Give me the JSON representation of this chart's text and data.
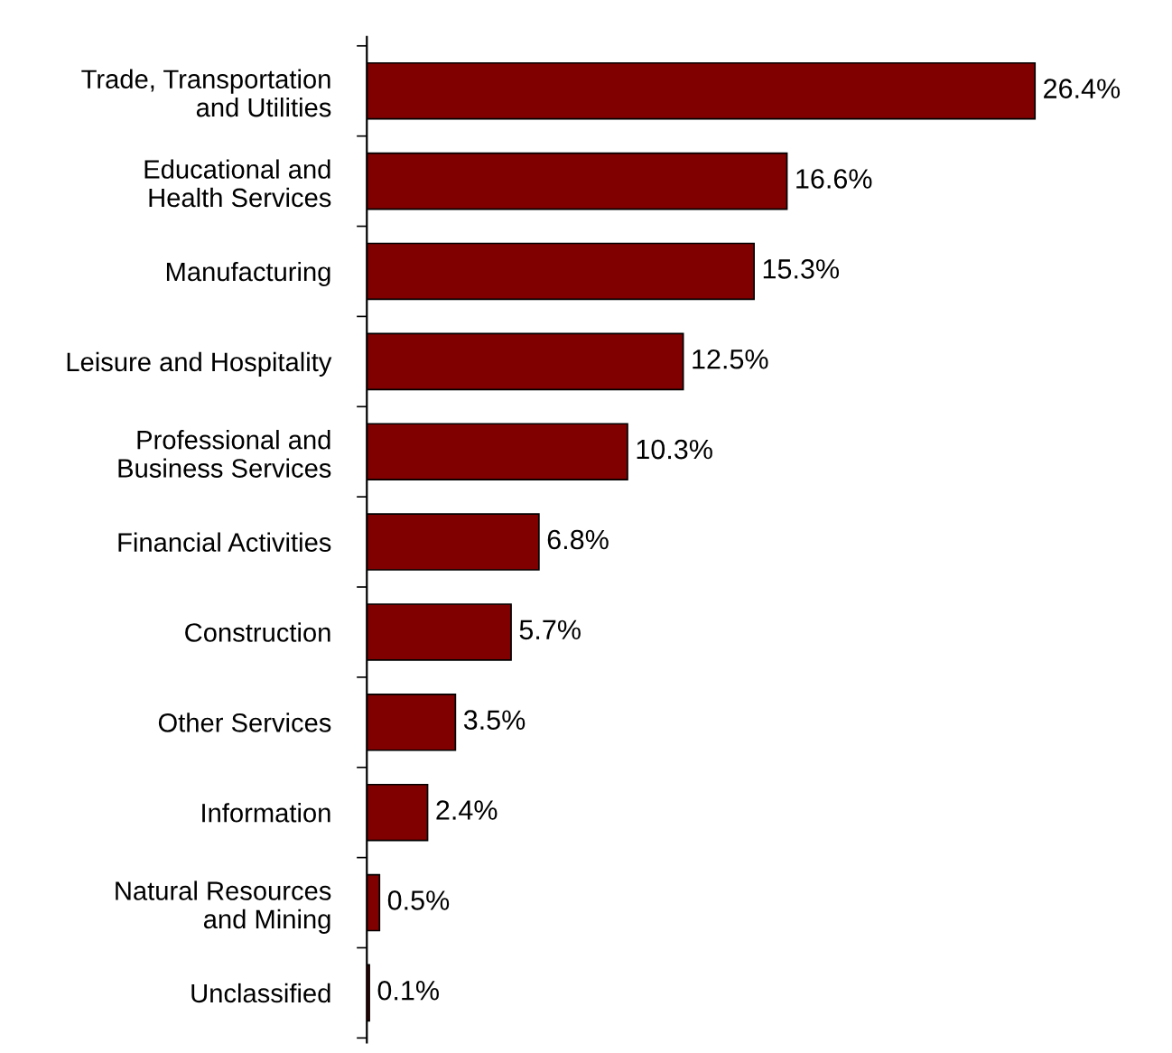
{
  "chart_data": {
    "type": "bar",
    "orientation": "horizontal",
    "categories": [
      "Trade, Transportation\nand Utilities",
      "Educational and\nHealth Services",
      "Manufacturing",
      "Leisure and Hospitality",
      "Professional and\nBusiness Services",
      "Financial Activities",
      "Construction",
      "Other Services",
      "Information",
      "Natural Resources\nand Mining",
      "Unclassified"
    ],
    "values": [
      26.4,
      16.6,
      15.3,
      12.5,
      10.3,
      6.8,
      5.7,
      3.5,
      2.4,
      0.5,
      0.1
    ],
    "value_labels": [
      "26.4%",
      "16.6%",
      "15.3%",
      "12.5%",
      "10.3%",
      "6.8%",
      "5.7%",
      "3.5%",
      "2.4%",
      "0.5%",
      "0.1%"
    ],
    "color": "#800000",
    "grid": false,
    "legend": false
  }
}
